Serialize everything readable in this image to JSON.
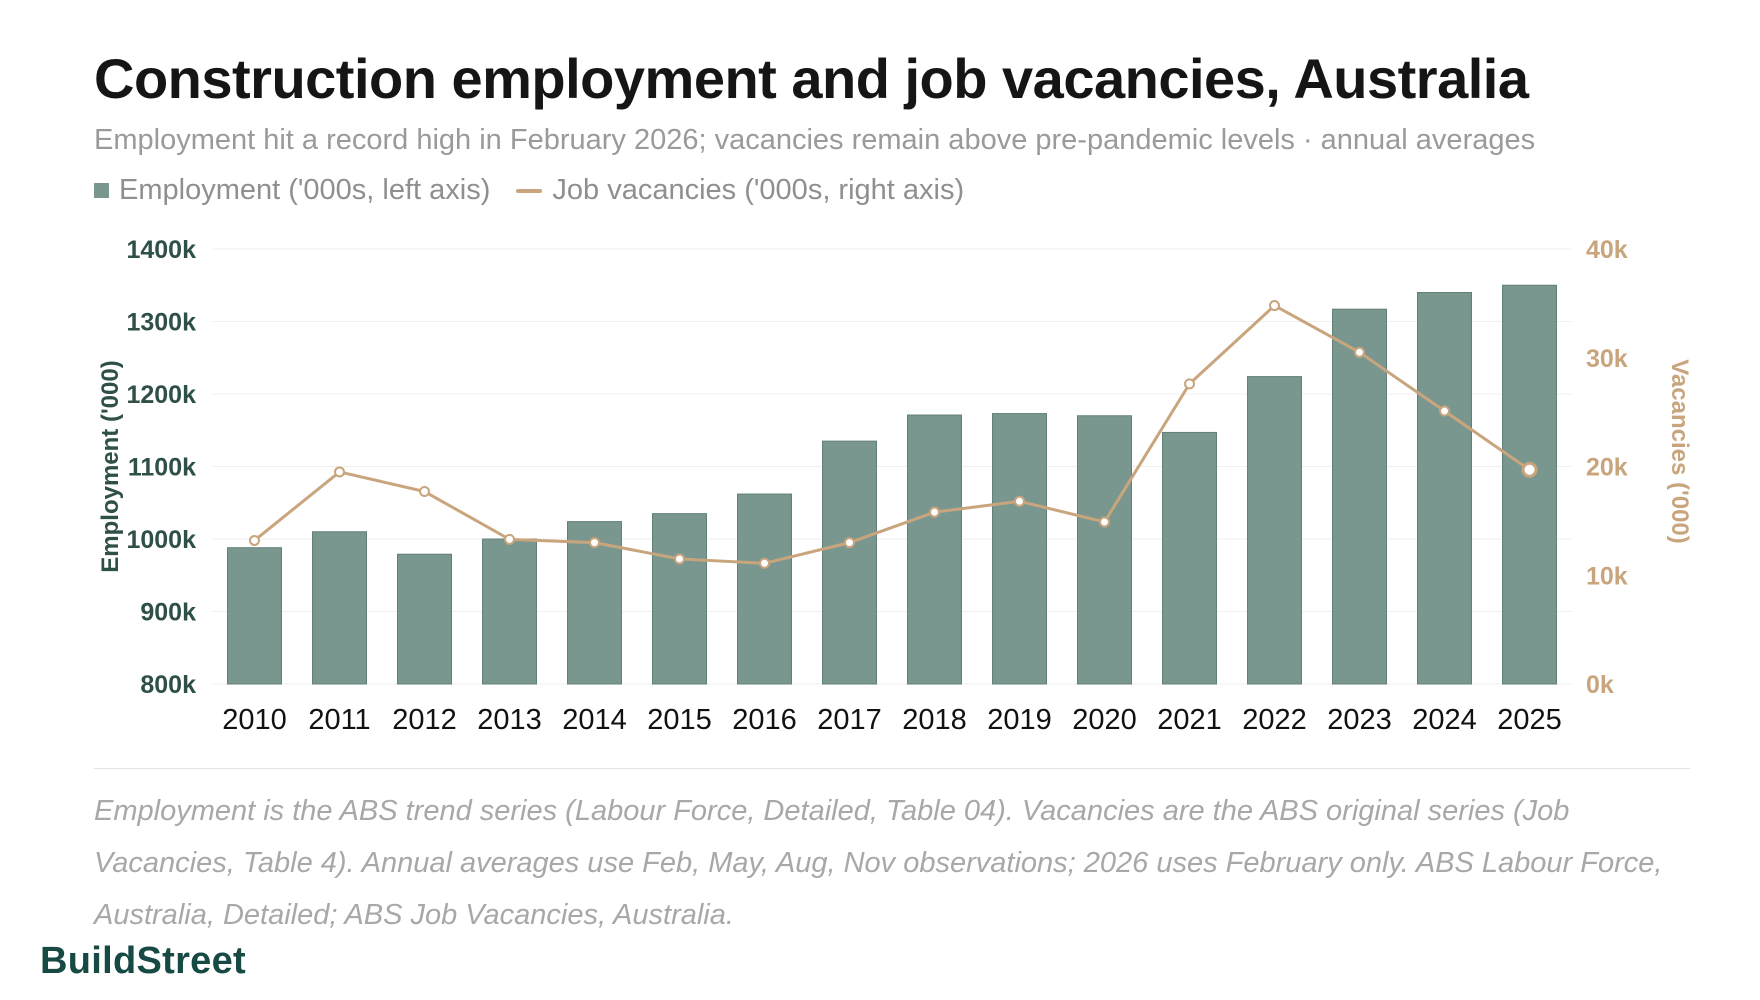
{
  "header": {
    "title": "Construction employment and job vacancies, Australia",
    "subtitle": "Employment hit a record high in February 2026; vacancies remain above pre-pandemic levels · annual averages"
  },
  "legend": {
    "employment": "Employment ('000s, left axis)",
    "vacancies": "Job vacancies ('000s, right axis)"
  },
  "footer": {
    "note": "Employment is the ABS trend series (Labour Force, Detailed, Table 04). Vacancies are the ABS original series (Job Vacancies, Table 4). Annual averages use Feb, May, Aug, Nov observations; 2026 uses February only. ABS Labour Force, Australia, Detailed; ABS Job Vacancies, Australia.",
    "brand": "BuildStreet"
  },
  "colors": {
    "employment": "#7a978f",
    "employment_stroke": "#61807a",
    "vacancies": "#c9a57e",
    "left_axis_text": "#2f4f49",
    "right_axis_text": "#c9a57e",
    "grid": "#efefef"
  },
  "chart_data": {
    "type": "bar",
    "categories": [
      "2010",
      "2011",
      "2012",
      "2013",
      "2014",
      "2015",
      "2016",
      "2017",
      "2018",
      "2019",
      "2020",
      "2021",
      "2022",
      "2023",
      "2024",
      "2025"
    ],
    "series": [
      {
        "name": "Employment ('000s, left axis)",
        "type": "bar",
        "axis": "left",
        "values": [
          988,
          1010,
          979,
          1000,
          1024,
          1035,
          1062,
          1135,
          1171,
          1173,
          1170,
          1147,
          1224,
          1317,
          1340,
          1350
        ]
      },
      {
        "name": "Job vacancies ('000s, right axis)",
        "type": "line",
        "axis": "right",
        "values": [
          13.2,
          19.5,
          17.7,
          13.3,
          13.0,
          11.5,
          11.1,
          13.0,
          15.8,
          16.8,
          14.9,
          27.6,
          34.8,
          30.5,
          25.1,
          19.7
        ]
      }
    ],
    "left_axis": {
      "label": "Employment ('000)",
      "ylim": [
        800,
        1400
      ],
      "ticks": [
        "800k",
        "900k",
        "1000k",
        "1100k",
        "1200k",
        "1300k",
        "1400k"
      ]
    },
    "right_axis": {
      "label": "Vacancies ('000)",
      "ylim": [
        0,
        40
      ],
      "ticks": [
        "0k",
        "10k",
        "20k",
        "30k",
        "40k"
      ]
    },
    "grid": true,
    "legend_position": "top-left"
  }
}
